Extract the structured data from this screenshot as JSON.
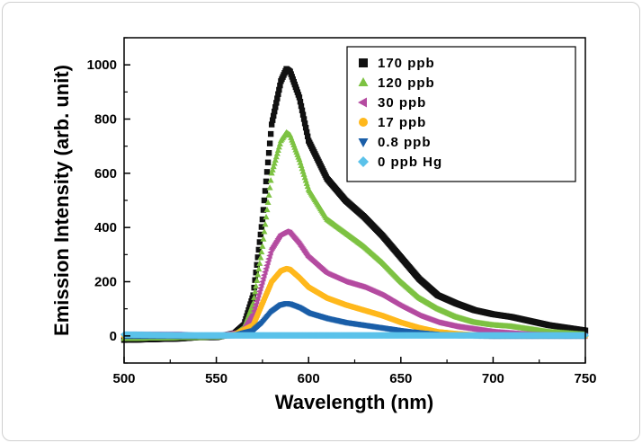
{
  "chart_data": {
    "type": "scatter",
    "title": "",
    "xlabel": "Wavelength (nm)",
    "ylabel": "Emission Intensity (arb. unit)",
    "xlim": [
      500,
      750
    ],
    "ylim": [
      -100,
      1100
    ],
    "xticks": [
      500,
      550,
      600,
      650,
      700,
      750
    ],
    "yticks": [
      0,
      200,
      400,
      600,
      800,
      1000
    ],
    "legend_position": "top-right",
    "series": [
      {
        "name": "170 ppb",
        "marker": "square",
        "color": "#111111",
        "x": [
          500,
          530,
          540,
          550,
          560,
          565,
          570,
          575,
          580,
          585,
          588,
          590,
          595,
          600,
          610,
          620,
          630,
          640,
          650,
          660,
          670,
          680,
          690,
          700,
          710,
          720,
          730,
          740,
          750
        ],
        "y": [
          -15,
          -10,
          -5,
          -5,
          10,
          40,
          150,
          430,
          780,
          940,
          985,
          975,
          880,
          720,
          580,
          500,
          440,
          370,
          290,
          210,
          150,
          120,
          95,
          80,
          70,
          55,
          40,
          30,
          20
        ]
      },
      {
        "name": "120 ppb",
        "marker": "triangle-up",
        "color": "#7dc242",
        "x": [
          500,
          550,
          560,
          565,
          570,
          575,
          580,
          585,
          588,
          590,
          595,
          600,
          610,
          620,
          630,
          640,
          650,
          660,
          670,
          680,
          690,
          700,
          710,
          720,
          730,
          740,
          750
        ],
        "y": [
          -10,
          -5,
          5,
          30,
          120,
          330,
          600,
          720,
          750,
          740,
          650,
          540,
          430,
          380,
          330,
          270,
          200,
          140,
          100,
          70,
          50,
          40,
          35,
          25,
          15,
          10,
          5
        ]
      },
      {
        "name": "30 ppb",
        "marker": "triangle-left",
        "color": "#b44ba0",
        "x": [
          500,
          530,
          540,
          550,
          560,
          565,
          570,
          575,
          580,
          585,
          588,
          590,
          595,
          600,
          610,
          620,
          630,
          640,
          650,
          660,
          670,
          680,
          690,
          700,
          710,
          720,
          730,
          740,
          750
        ],
        "y": [
          5,
          5,
          0,
          0,
          10,
          25,
          80,
          200,
          320,
          375,
          385,
          380,
          340,
          290,
          230,
          200,
          180,
          150,
          110,
          75,
          50,
          35,
          25,
          15,
          10,
          5,
          3,
          2,
          0
        ]
      },
      {
        "name": "17 ppb",
        "marker": "circle",
        "color": "#ffb81c",
        "x": [
          500,
          550,
          560,
          570,
          575,
          580,
          585,
          588,
          590,
          595,
          600,
          610,
          620,
          630,
          640,
          650,
          660,
          670,
          680,
          690,
          700,
          720,
          750
        ],
        "y": [
          0,
          0,
          5,
          40,
          120,
          200,
          240,
          248,
          245,
          215,
          180,
          140,
          115,
          95,
          75,
          50,
          30,
          15,
          8,
          3,
          0,
          0,
          0
        ]
      },
      {
        "name": "0.8 ppb",
        "marker": "triangle-down",
        "color": "#1a5ea8",
        "x": [
          500,
          550,
          560,
          570,
          575,
          580,
          585,
          588,
          590,
          595,
          600,
          610,
          620,
          630,
          640,
          650,
          660,
          670,
          680,
          700,
          750
        ],
        "y": [
          0,
          0,
          3,
          20,
          50,
          90,
          115,
          120,
          118,
          105,
          85,
          65,
          50,
          40,
          30,
          20,
          12,
          6,
          3,
          0,
          0
        ]
      },
      {
        "name": "0 ppb Hg",
        "marker": "diamond",
        "color": "#5bc2ea",
        "x": [
          500,
          520,
          540,
          560,
          580,
          600,
          620,
          640,
          660,
          680,
          700,
          720,
          740,
          750
        ],
        "y": [
          5,
          3,
          2,
          2,
          2,
          2,
          2,
          2,
          2,
          2,
          2,
          2,
          2,
          2
        ]
      }
    ]
  }
}
